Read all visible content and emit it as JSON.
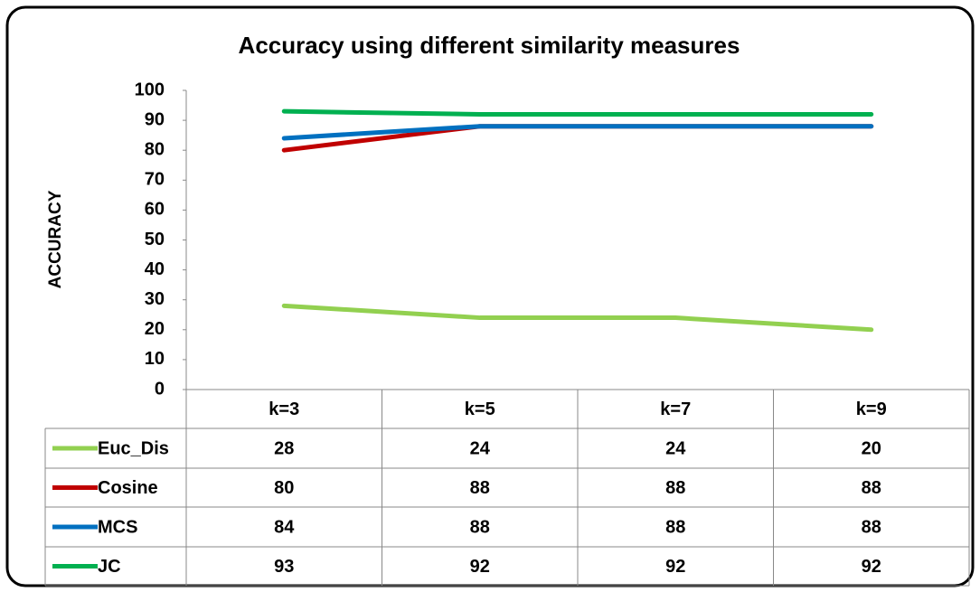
{
  "chart_data": {
    "type": "line",
    "title": "Accuracy using different similarity measures",
    "y_label": "ACCURACY",
    "categories": [
      "k=3",
      "k=5",
      "k=7",
      "k=9"
    ],
    "series": [
      {
        "name": "Euc_Dis",
        "color": "#92d050",
        "values": [
          28,
          24,
          24,
          20
        ]
      },
      {
        "name": "Cosine",
        "color": "#c00000",
        "values": [
          80,
          88,
          88,
          88
        ]
      },
      {
        "name": "MCS",
        "color": "#0070c0",
        "values": [
          84,
          88,
          88,
          88
        ]
      },
      {
        "name": "JC",
        "color": "#00b050",
        "values": [
          93,
          92,
          92,
          92
        ]
      }
    ],
    "ylim": [
      0,
      100
    ],
    "yticks": [
      0,
      10,
      20,
      30,
      40,
      50,
      60,
      70,
      80,
      90,
      100
    ]
  }
}
